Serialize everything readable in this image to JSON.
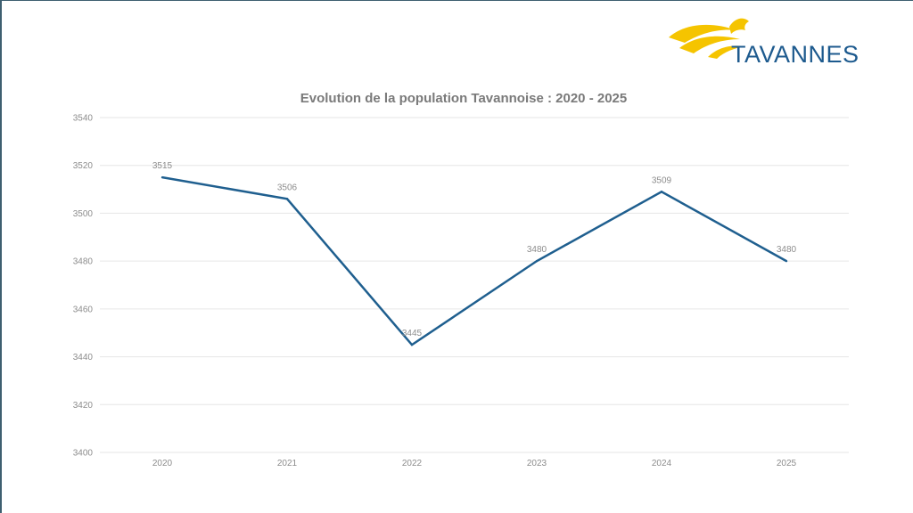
{
  "logo": {
    "text": "TAVANNES",
    "colors": {
      "text": "#1d5a8e",
      "flame": "#f5c400"
    }
  },
  "chart_data": {
    "type": "line",
    "title": "Evolution de la population Tavannoise : 2020 - 2025",
    "xlabel": "",
    "ylabel": "",
    "categories": [
      "2020",
      "2021",
      "2022",
      "2023",
      "2024",
      "2025"
    ],
    "series": [
      {
        "name": "Population",
        "values": [
          3515,
          3506,
          3445,
          3480,
          3509,
          3480
        ],
        "color": "#1f5f8f"
      }
    ],
    "data_labels": [
      "3515",
      "3506",
      "3445",
      "3480",
      "3509",
      "3480"
    ],
    "ylim": [
      3400,
      3540
    ],
    "yticks": [
      3400,
      3420,
      3440,
      3460,
      3480,
      3500,
      3520,
      3540
    ],
    "ytick_labels": [
      "3400",
      "3420",
      "3440",
      "3460",
      "3480",
      "3500",
      "3520",
      "3540"
    ],
    "grid": true,
    "legend": "none"
  }
}
